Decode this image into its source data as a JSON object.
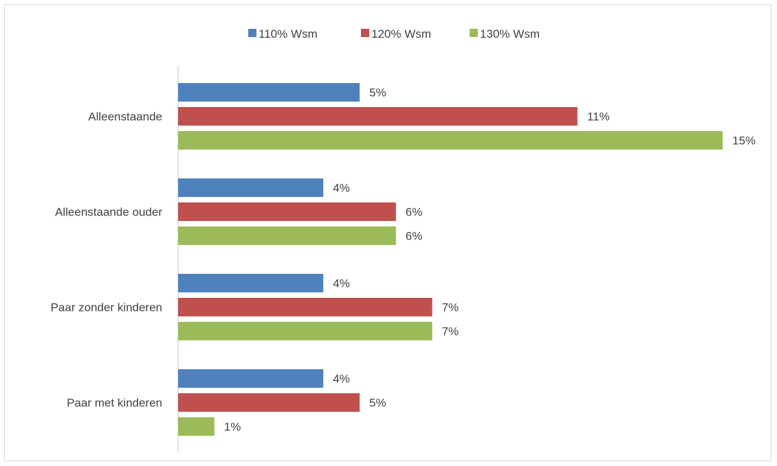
{
  "chart_data": {
    "type": "bar",
    "orientation": "horizontal",
    "title": "",
    "xlabel": "",
    "ylabel": "",
    "categories": [
      "Alleenstaande",
      "Alleenstaande ouder",
      "Paar zonder kinderen",
      "Paar met kinderen"
    ],
    "series": [
      {
        "name": "110% Wsm",
        "color": "#4f81bd",
        "values": [
          5,
          4,
          4,
          4
        ],
        "labels": [
          "5%",
          "4%",
          "4%",
          "4%"
        ]
      },
      {
        "name": "120% Wsm",
        "color": "#c0504d",
        "values": [
          11,
          6,
          7,
          5
        ],
        "labels": [
          "11%",
          "6%",
          "7%",
          "5%"
        ]
      },
      {
        "name": "130% Wsm",
        "color": "#9bbb59",
        "values": [
          15,
          6,
          7,
          1
        ],
        "labels": [
          "15%",
          "6%",
          "7%",
          "1%"
        ]
      }
    ],
    "legend": "top-center",
    "grid": false,
    "xaxis_visible": false
  }
}
